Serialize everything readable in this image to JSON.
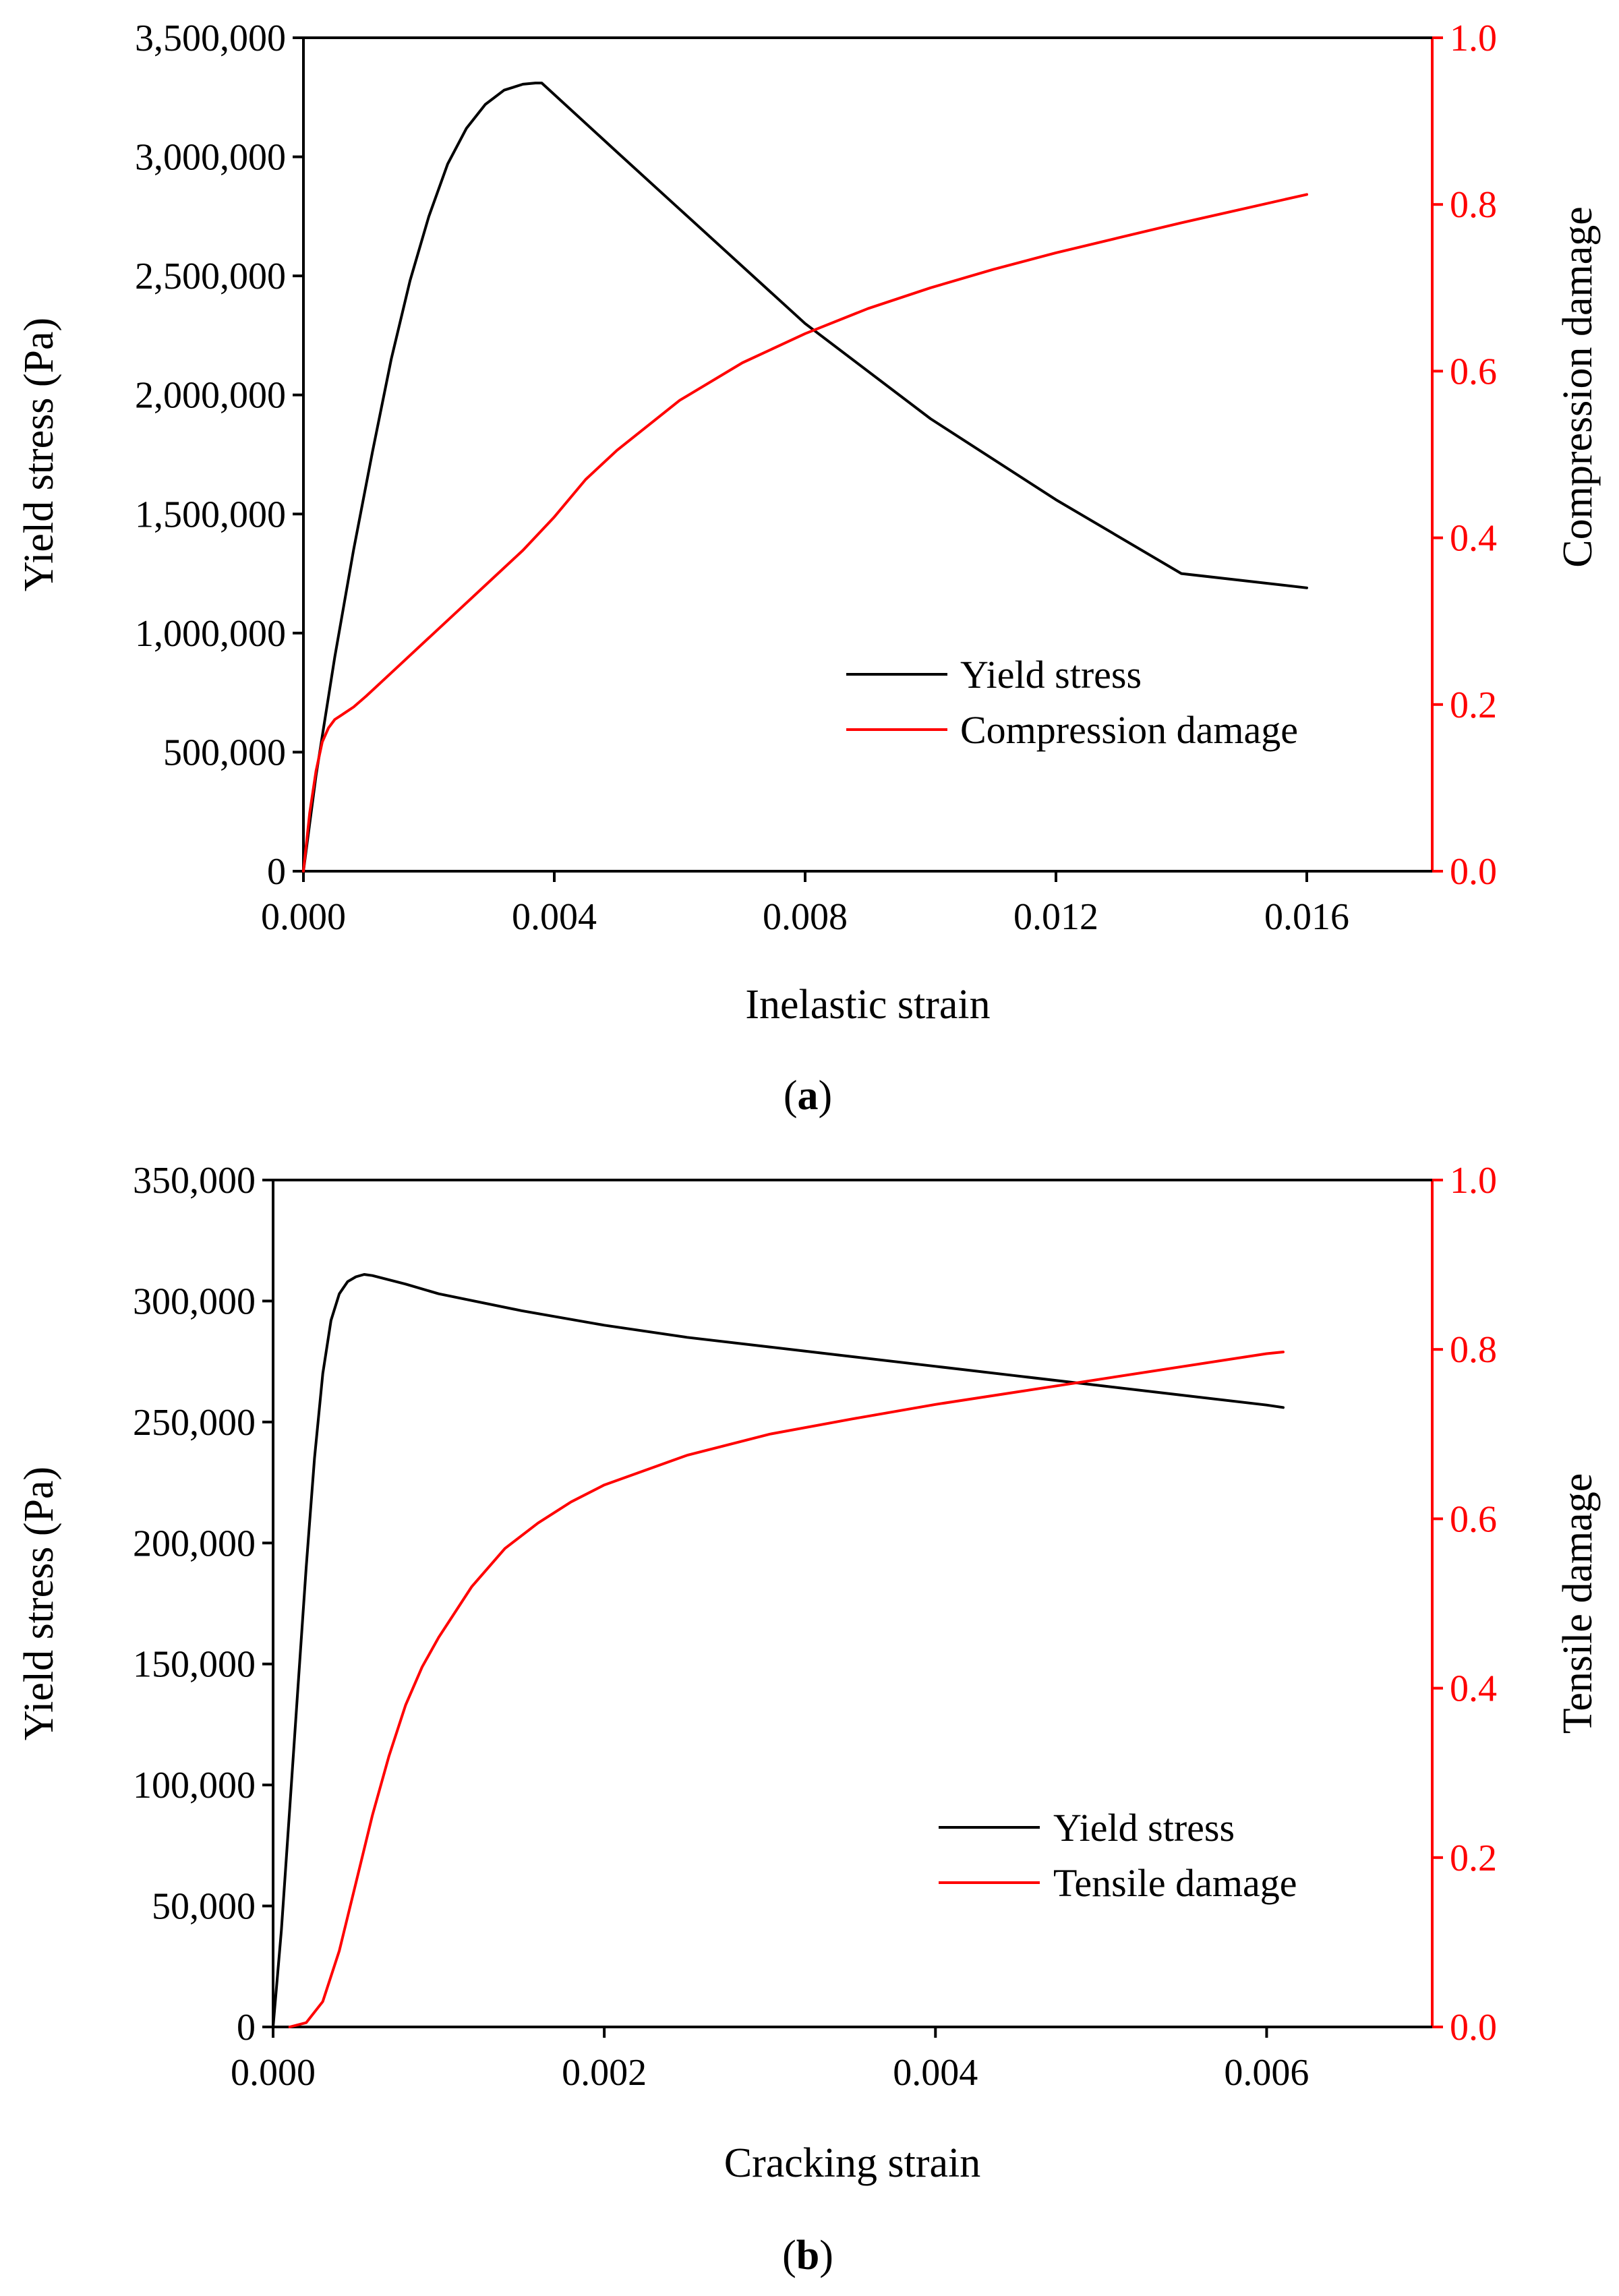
{
  "colors": {
    "stress": "#000000",
    "damage": "#ff0000",
    "axis": "#000000"
  },
  "chart_data": [
    {
      "panel": "a",
      "panel_label": "a",
      "type": "line",
      "xlabel": "Inelastic strain",
      "ylabel_left": "Yield stress (Pa)",
      "ylabel_right": "Compression damage",
      "xlim": [
        0,
        0.018
      ],
      "ylim_left": [
        0,
        3500000
      ],
      "ylim_right": [
        0,
        1.0
      ],
      "x_ticks": [
        0,
        0.004,
        0.008,
        0.012,
        0.016
      ],
      "x_tick_labels": [
        "0.000",
        "0.004",
        "0.008",
        "0.012",
        "0.016"
      ],
      "y_left_ticks": [
        0,
        500000,
        1000000,
        1500000,
        2000000,
        2500000,
        3000000,
        3500000
      ],
      "y_left_tick_labels": [
        "0",
        "500,000",
        "1,000,000",
        "1,500,000",
        "2,000,000",
        "2,500,000",
        "3,000,000",
        "3,500,000"
      ],
      "y_right_ticks": [
        0,
        0.2,
        0.4,
        0.6,
        0.8,
        1.0
      ],
      "y_right_tick_labels": [
        "0.0",
        "0.2",
        "0.4",
        "0.6",
        "0.8",
        "1.0"
      ],
      "legend": [
        "Yield stress",
        "Compression damage"
      ],
      "series": [
        {
          "name": "Yield stress",
          "axis": "left",
          "x": [
            0,
            0.0002,
            0.0005,
            0.0008,
            0.0011,
            0.0014,
            0.0017,
            0.002,
            0.0023,
            0.0026,
            0.0029,
            0.0032,
            0.0035,
            0.0037,
            0.0038,
            0.005,
            0.006,
            0.008,
            0.01,
            0.012,
            0.014,
            0.016
          ],
          "y": [
            0,
            400000,
            900000,
            1350000,
            1760000,
            2150000,
            2480000,
            2750000,
            2970000,
            3120000,
            3220000,
            3280000,
            3305000,
            3310000,
            3310000,
            3020000,
            2780000,
            2300000,
            1900000,
            1560000,
            1250000,
            1190000
          ]
        },
        {
          "name": "Compression damage",
          "axis": "right",
          "x": [
            0,
            0.0001,
            0.0002,
            0.0003,
            0.0004,
            0.0005,
            0.0006,
            0.0008,
            0.001,
            0.0015,
            0.002,
            0.0025,
            0.003,
            0.0035,
            0.004,
            0.0045,
            0.005,
            0.006,
            0.007,
            0.008,
            0.009,
            0.01,
            0.011,
            0.012,
            0.013,
            0.014,
            0.015,
            0.016
          ],
          "y": [
            0,
            0.07,
            0.12,
            0.155,
            0.172,
            0.182,
            0.187,
            0.197,
            0.21,
            0.245,
            0.28,
            0.315,
            0.35,
            0.385,
            0.425,
            0.47,
            0.505,
            0.565,
            0.61,
            0.645,
            0.675,
            0.7,
            0.722,
            0.742,
            0.76,
            0.778,
            0.795,
            0.812
          ]
        }
      ]
    },
    {
      "panel": "b",
      "panel_label": "b",
      "type": "line",
      "xlabel": "Cracking strain",
      "ylabel_left": "Yield stress (Pa)",
      "ylabel_right": "Tensile damage",
      "xlim": [
        0,
        0.007
      ],
      "ylim_left": [
        0,
        350000
      ],
      "ylim_right": [
        0,
        1.0
      ],
      "x_ticks": [
        0,
        0.002,
        0.004,
        0.006
      ],
      "x_tick_labels": [
        "0.000",
        "0.002",
        "0.004",
        "0.006"
      ],
      "y_left_ticks": [
        0,
        50000,
        100000,
        150000,
        200000,
        250000,
        300000,
        350000
      ],
      "y_left_tick_labels": [
        "0",
        "50,000",
        "100,000",
        "150,000",
        "200,000",
        "250,000",
        "300,000",
        "350,000"
      ],
      "y_right_ticks": [
        0,
        0.2,
        0.4,
        0.6,
        0.8,
        1.0
      ],
      "y_right_tick_labels": [
        "0.0",
        "0.2",
        "0.4",
        "0.6",
        "0.8",
        "1.0"
      ],
      "legend": [
        "Yield stress",
        "Tensile damage"
      ],
      "series": [
        {
          "name": "Yield stress",
          "axis": "left",
          "x": [
            0,
            5e-05,
            0.0001,
            0.00015,
            0.0002,
            0.00025,
            0.0003,
            0.00035,
            0.0004,
            0.00045,
            0.0005,
            0.00055,
            0.0006,
            0.0008,
            0.001,
            0.0015,
            0.002,
            0.0025,
            0.003,
            0.0035,
            0.004,
            0.0045,
            0.005,
            0.0055,
            0.006,
            0.0061
          ],
          "y": [
            0,
            40000,
            90000,
            140000,
            190000,
            235000,
            270000,
            292000,
            303000,
            308000,
            310000,
            311000,
            310500,
            307000,
            303000,
            296000,
            290000,
            285000,
            281000,
            277000,
            273000,
            269000,
            265000,
            261000,
            257000,
            256000
          ]
        },
        {
          "name": "Tensile damage",
          "axis": "right",
          "x": [
            0.0001,
            0.0002,
            0.0003,
            0.0004,
            0.0005,
            0.0006,
            0.0007,
            0.0008,
            0.0009,
            0.001,
            0.0012,
            0.0014,
            0.0016,
            0.0018,
            0.002,
            0.0025,
            0.003,
            0.0035,
            0.004,
            0.0045,
            0.005,
            0.0055,
            0.006,
            0.0061
          ],
          "y": [
            0,
            0.005,
            0.03,
            0.09,
            0.17,
            0.25,
            0.32,
            0.38,
            0.425,
            0.46,
            0.52,
            0.565,
            0.595,
            0.62,
            0.64,
            0.675,
            0.7,
            0.718,
            0.735,
            0.75,
            0.765,
            0.78,
            0.795,
            0.797
          ]
        }
      ]
    }
  ]
}
